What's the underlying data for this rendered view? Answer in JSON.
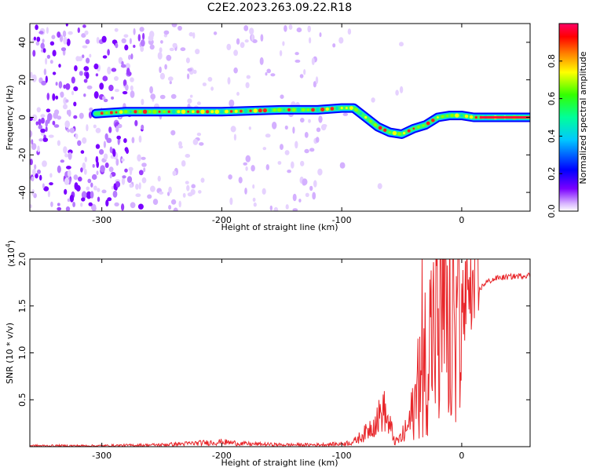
{
  "title": "C2E2.2023.263.09.22.R18",
  "chart_data": [
    {
      "type": "heatmap",
      "xlabel": "Height of straight line (km)",
      "ylabel": "Frequency (Hz)",
      "xlim": [
        -360,
        57
      ],
      "ylim": [
        -50,
        50
      ],
      "xticks": [
        -300,
        -200,
        -100,
        0
      ],
      "yticks": [
        -40,
        -20,
        0,
        20,
        40
      ],
      "colorbar": {
        "label": "Normalized spectral amplitude",
        "range": [
          0,
          1
        ],
        "ticks": [
          "0.0",
          "0.2",
          "0.4",
          "0.6",
          "0.8"
        ],
        "colormap": "rainbow (white/purple to red)"
      },
      "ridge": {
        "description": "dominant frequency band",
        "points": [
          [
            -305,
            2
          ],
          [
            -280,
            3
          ],
          [
            -250,
            3
          ],
          [
            -200,
            3
          ],
          [
            -150,
            4
          ],
          [
            -120,
            4
          ],
          [
            -100,
            5
          ],
          [
            -90,
            5
          ],
          [
            -80,
            0
          ],
          [
            -70,
            -5
          ],
          [
            -60,
            -8
          ],
          [
            -50,
            -9
          ],
          [
            -40,
            -6
          ],
          [
            -30,
            -4
          ],
          [
            -20,
            0
          ],
          [
            -10,
            1
          ],
          [
            0,
            1
          ],
          [
            10,
            0
          ],
          [
            30,
            0
          ],
          [
            57,
            0
          ]
        ]
      },
      "grid": false
    },
    {
      "type": "line",
      "xlabel": "Height of straight line (km)",
      "ylabel": "SNR (10 * v/v)",
      "y_multiplier": "(x10^4)",
      "xlim": [
        -360,
        57
      ],
      "ylim": [
        0,
        2.0
      ],
      "xticks": [
        -300,
        -200,
        -100,
        0
      ],
      "yticks": [
        "0.5",
        "1.0",
        "1.5",
        "2.0"
      ],
      "series": [
        {
          "color": "#e8262a",
          "points": [
            [
              -360,
              0.01
            ],
            [
              -300,
              0.01
            ],
            [
              -250,
              0.02
            ],
            [
              -200,
              0.05
            ],
            [
              -180,
              0.03
            ],
            [
              -150,
              0.02
            ],
            [
              -120,
              0.02
            ],
            [
              -100,
              0.03
            ],
            [
              -90,
              0.05
            ],
            [
              -80,
              0.15
            ],
            [
              -70,
              0.3
            ],
            [
              -65,
              0.4
            ],
            [
              -60,
              0.2
            ],
            [
              -55,
              0.05
            ],
            [
              -50,
              0.1
            ],
            [
              -45,
              0.2
            ],
            [
              -40,
              0.4
            ],
            [
              -35,
              0.7
            ],
            [
              -30,
              1.0
            ],
            [
              -25,
              1.2
            ],
            [
              -20,
              1.35
            ],
            [
              -15,
              1.3
            ],
            [
              -10,
              1.2
            ],
            [
              -5,
              1.3
            ],
            [
              0,
              1.45
            ],
            [
              5,
              1.55
            ],
            [
              10,
              1.6
            ],
            [
              15,
              1.68
            ],
            [
              20,
              1.75
            ],
            [
              30,
              1.8
            ],
            [
              40,
              1.81
            ],
            [
              57,
              1.83
            ]
          ]
        }
      ],
      "grid": false
    }
  ]
}
